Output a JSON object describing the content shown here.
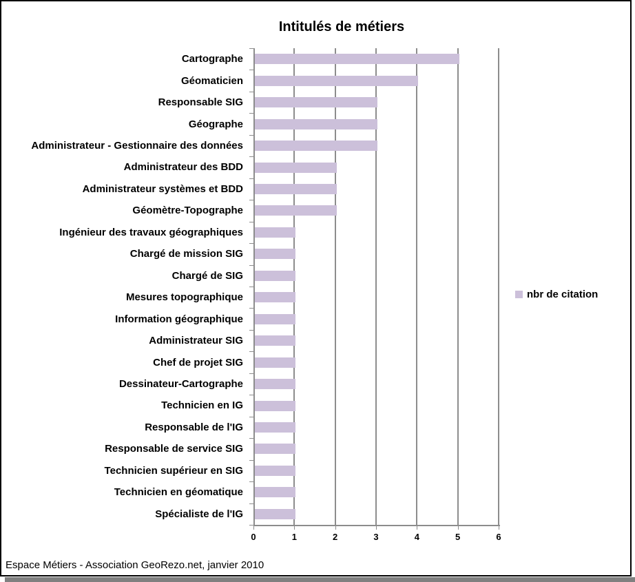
{
  "title": "Intitulés de métiers",
  "legend": {
    "label": "nbr de citation"
  },
  "footer": "Espace Métiers - Association GeoRezo.net, janvier 2010",
  "colors": {
    "bar": "#CCC0DA",
    "gridline": "#8C8C8C",
    "axis": "#8C8C8C",
    "text": "#000000",
    "frame_border": "#000000",
    "shadow": "#808080",
    "background": "#FFFFFF"
  },
  "chart_data": {
    "type": "bar",
    "orientation": "horizontal",
    "title": "Intitulés de métiers",
    "series_name": "nbr de citation",
    "categories": [
      "Cartographe",
      "Géomaticien",
      "Responsable SIG",
      "Géographe",
      "Administrateur - Gestionnaire des données",
      "Administrateur des BDD",
      "Administrateur systèmes et BDD",
      "Géomètre-Topographe",
      "Ingénieur des travaux géographiques",
      "Chargé de mission SIG",
      "Chargé de SIG",
      "Mesures topographique",
      "Information géographique",
      "Administrateur SIG",
      "Chef de projet SIG",
      "Dessinateur-Cartographe",
      "Technicien en IG",
      "Responsable de l'IG",
      "Responsable de service SIG",
      "Technicien supérieur en SIG",
      "Technicien en géomatique",
      "Spécialiste de l'IG"
    ],
    "values": [
      5,
      4,
      3,
      3,
      3,
      2,
      2,
      2,
      1,
      1,
      1,
      1,
      1,
      1,
      1,
      1,
      1,
      1,
      1,
      1,
      1,
      1
    ],
    "xlim": [
      0,
      6
    ],
    "xticks": [
      0,
      1,
      2,
      3,
      4,
      5,
      6
    ],
    "grid": true,
    "legend_position": "right",
    "xlabel": "",
    "ylabel": ""
  }
}
